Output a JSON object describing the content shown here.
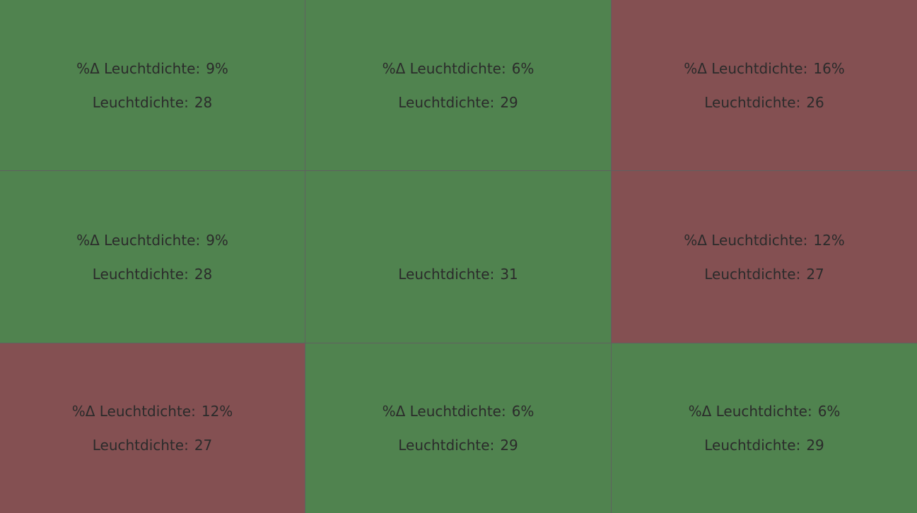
{
  "colors": {
    "good": "#50834f",
    "bad": "#845052",
    "divider": "#606060",
    "text": "#2b2b2b"
  },
  "cells": [
    {
      "status": "good",
      "delta_label": "%Δ Leuchtdichte:",
      "delta_value": "9%",
      "lum_label": "Leuchtdichte:",
      "lum_value": "28"
    },
    {
      "status": "good",
      "delta_label": "%Δ Leuchtdichte:",
      "delta_value": "6%",
      "lum_label": "Leuchtdichte:",
      "lum_value": "29"
    },
    {
      "status": "bad",
      "delta_label": "%Δ Leuchtdichte:",
      "delta_value": "16%",
      "lum_label": "Leuchtdichte:",
      "lum_value": "26"
    },
    {
      "status": "good",
      "delta_label": "%Δ Leuchtdichte:",
      "delta_value": "9%",
      "lum_label": "Leuchtdichte:",
      "lum_value": "28"
    },
    {
      "status": "good",
      "delta_label": "",
      "delta_value": "",
      "lum_label": "Leuchtdichte:",
      "lum_value": "31"
    },
    {
      "status": "bad",
      "delta_label": "%Δ Leuchtdichte:",
      "delta_value": "12%",
      "lum_label": "Leuchtdichte:",
      "lum_value": "27"
    },
    {
      "status": "bad",
      "delta_label": "%Δ Leuchtdichte:",
      "delta_value": "12%",
      "lum_label": "Leuchtdichte:",
      "lum_value": "27"
    },
    {
      "status": "good",
      "delta_label": "%Δ Leuchtdichte:",
      "delta_value": "6%",
      "lum_label": "Leuchtdichte:",
      "lum_value": "29"
    },
    {
      "status": "good",
      "delta_label": "%Δ Leuchtdichte:",
      "delta_value": "6%",
      "lum_label": "Leuchtdichte:",
      "lum_value": "29"
    }
  ]
}
